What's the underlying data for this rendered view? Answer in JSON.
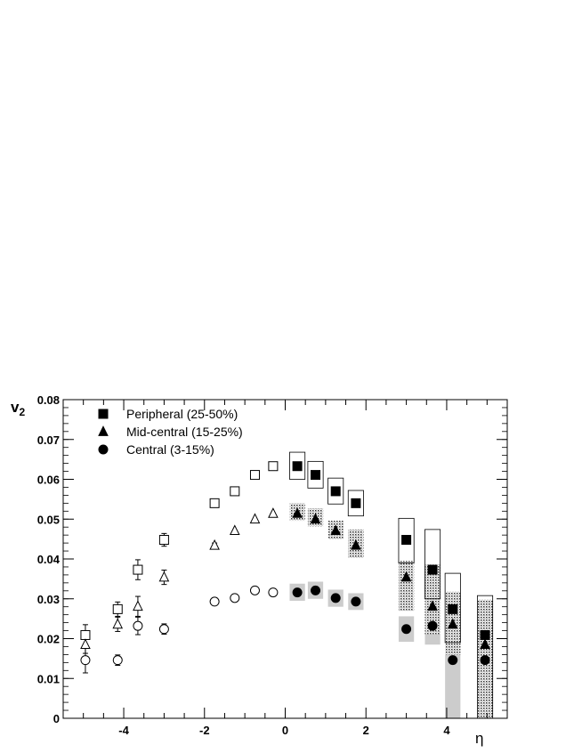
{
  "chart_data": {
    "type": "scatter",
    "title": "",
    "xlabel": "η",
    "ylabel_main": "v",
    "ylabel_sub": "2",
    "xlim": [
      -5.5,
      5.5
    ],
    "ylim": [
      0,
      0.08
    ],
    "xticks": [
      "-4",
      "-2",
      "0",
      "2",
      "4"
    ],
    "yticks": [
      "0",
      "0.01",
      "0.02",
      "0.03",
      "0.04",
      "0.05",
      "0.06",
      "0.07",
      "0.08"
    ],
    "grid": false,
    "legend_placement": "top-left",
    "series": [
      {
        "name": "Peripheral (25-50%)",
        "marker": "square",
        "color": "#000000",
        "syst_style": "open",
        "points": [
          {
            "x": 0.3,
            "y": 0.0633,
            "fill": "filled",
            "syst": [
              0.06,
              0.0668
            ]
          },
          {
            "x": 0.75,
            "y": 0.0611,
            "fill": "filled",
            "syst": [
              0.0578,
              0.0645
            ]
          },
          {
            "x": 1.25,
            "y": 0.057,
            "fill": "filled",
            "syst": [
              0.0538,
              0.0603
            ]
          },
          {
            "x": 1.75,
            "y": 0.054,
            "fill": "filled",
            "syst": [
              0.0508,
              0.0572
            ]
          },
          {
            "x": 3.0,
            "y": 0.0448,
            "fill": "filled",
            "syst": [
              0.039,
              0.0502
            ]
          },
          {
            "x": 3.65,
            "y": 0.0373,
            "fill": "filled",
            "syst": [
              0.03,
              0.0474
            ]
          },
          {
            "x": 4.15,
            "y": 0.0274,
            "fill": "filled",
            "syst": [
              0.019,
              0.0364
            ]
          },
          {
            "x": 4.95,
            "y": 0.0209,
            "fill": "filled",
            "syst": [
              0.0,
              0.0308
            ]
          },
          {
            "x": -0.3,
            "y": 0.0633,
            "fill": "open"
          },
          {
            "x": -0.75,
            "y": 0.0611,
            "fill": "open"
          },
          {
            "x": -1.25,
            "y": 0.057,
            "fill": "open"
          },
          {
            "x": -1.75,
            "y": 0.054,
            "fill": "open",
            "err": 0.0006
          },
          {
            "x": -3.0,
            "y": 0.0448,
            "fill": "open",
            "err": 0.0016
          },
          {
            "x": -3.65,
            "y": 0.0373,
            "fill": "open",
            "err": 0.0025
          },
          {
            "x": -4.15,
            "y": 0.0274,
            "fill": "open",
            "err": 0.0018
          },
          {
            "x": -4.95,
            "y": 0.0209,
            "fill": "open",
            "err": 0.0026
          }
        ]
      },
      {
        "name": "Mid-central (15-25%)",
        "marker": "triangle",
        "color": "#000000",
        "syst_style": "dotted",
        "points": [
          {
            "x": 0.3,
            "y": 0.0514,
            "fill": "filled",
            "syst": [
              0.0496,
              0.054
            ]
          },
          {
            "x": 0.75,
            "y": 0.05,
            "fill": "filled",
            "syst": [
              0.0482,
              0.0527
            ]
          },
          {
            "x": 1.25,
            "y": 0.0471,
            "fill": "filled",
            "syst": [
              0.045,
              0.0496
            ]
          },
          {
            "x": 1.75,
            "y": 0.0434,
            "fill": "filled",
            "syst": [
              0.0403,
              0.0474
            ]
          },
          {
            "x": 3.0,
            "y": 0.0354,
            "fill": "filled",
            "syst": [
              0.027,
              0.0395
            ]
          },
          {
            "x": 3.65,
            "y": 0.0281,
            "fill": "filled",
            "syst": [
              0.021,
              0.0386
            ]
          },
          {
            "x": 4.15,
            "y": 0.0236,
            "fill": "filled",
            "syst": [
              0.016,
              0.0318
            ]
          },
          {
            "x": 4.95,
            "y": 0.0185,
            "fill": "filled",
            "syst": [
              0.0,
              0.0298
            ]
          },
          {
            "x": -0.3,
            "y": 0.0514,
            "fill": "open"
          },
          {
            "x": -0.75,
            "y": 0.05,
            "fill": "open"
          },
          {
            "x": -1.25,
            "y": 0.0471,
            "fill": "open"
          },
          {
            "x": -1.75,
            "y": 0.0434,
            "fill": "open",
            "err": 0.0006
          },
          {
            "x": -3.0,
            "y": 0.0354,
            "fill": "open",
            "err": 0.0018
          },
          {
            "x": -3.65,
            "y": 0.0281,
            "fill": "open",
            "err": 0.0025
          },
          {
            "x": -4.15,
            "y": 0.0236,
            "fill": "open",
            "err": 0.0018
          },
          {
            "x": -4.95,
            "y": 0.0185,
            "fill": "open",
            "err": 0.0022
          }
        ]
      },
      {
        "name": "Central (3-15%)",
        "marker": "circle",
        "color": "#000000",
        "syst_style": "gray",
        "points": [
          {
            "x": 0.3,
            "y": 0.0316,
            "fill": "filled",
            "syst": [
              0.0295,
              0.0338
            ]
          },
          {
            "x": 0.75,
            "y": 0.0321,
            "fill": "filled",
            "syst": [
              0.03,
              0.0343
            ]
          },
          {
            "x": 1.25,
            "y": 0.0302,
            "fill": "filled",
            "syst": [
              0.028,
              0.0323
            ]
          },
          {
            "x": 1.75,
            "y": 0.0293,
            "fill": "filled",
            "syst": [
              0.0272,
              0.0314
            ]
          },
          {
            "x": 3.0,
            "y": 0.0224,
            "fill": "filled",
            "syst": [
              0.0192,
              0.0256
            ]
          },
          {
            "x": 3.65,
            "y": 0.0232,
            "fill": "filled",
            "syst": [
              0.0185,
              0.0278
            ]
          },
          {
            "x": 4.15,
            "y": 0.0146,
            "fill": "filled",
            "syst": [
              0.0,
              0.024
            ]
          },
          {
            "x": 4.95,
            "y": 0.0146,
            "fill": "filled",
            "syst": [
              0.0,
              0.024
            ]
          },
          {
            "x": -0.3,
            "y": 0.0316,
            "fill": "open"
          },
          {
            "x": -0.75,
            "y": 0.0321,
            "fill": "open"
          },
          {
            "x": -1.25,
            "y": 0.0302,
            "fill": "open"
          },
          {
            "x": -1.75,
            "y": 0.0293,
            "fill": "open",
            "err": 0.0006
          },
          {
            "x": -3.0,
            "y": 0.0224,
            "fill": "open",
            "err": 0.0013
          },
          {
            "x": -3.65,
            "y": 0.0232,
            "fill": "open",
            "err": 0.0022
          },
          {
            "x": -4.15,
            "y": 0.0146,
            "fill": "open",
            "err": 0.0013
          },
          {
            "x": -4.95,
            "y": 0.0146,
            "fill": "open",
            "err": 0.0032
          }
        ]
      }
    ]
  }
}
